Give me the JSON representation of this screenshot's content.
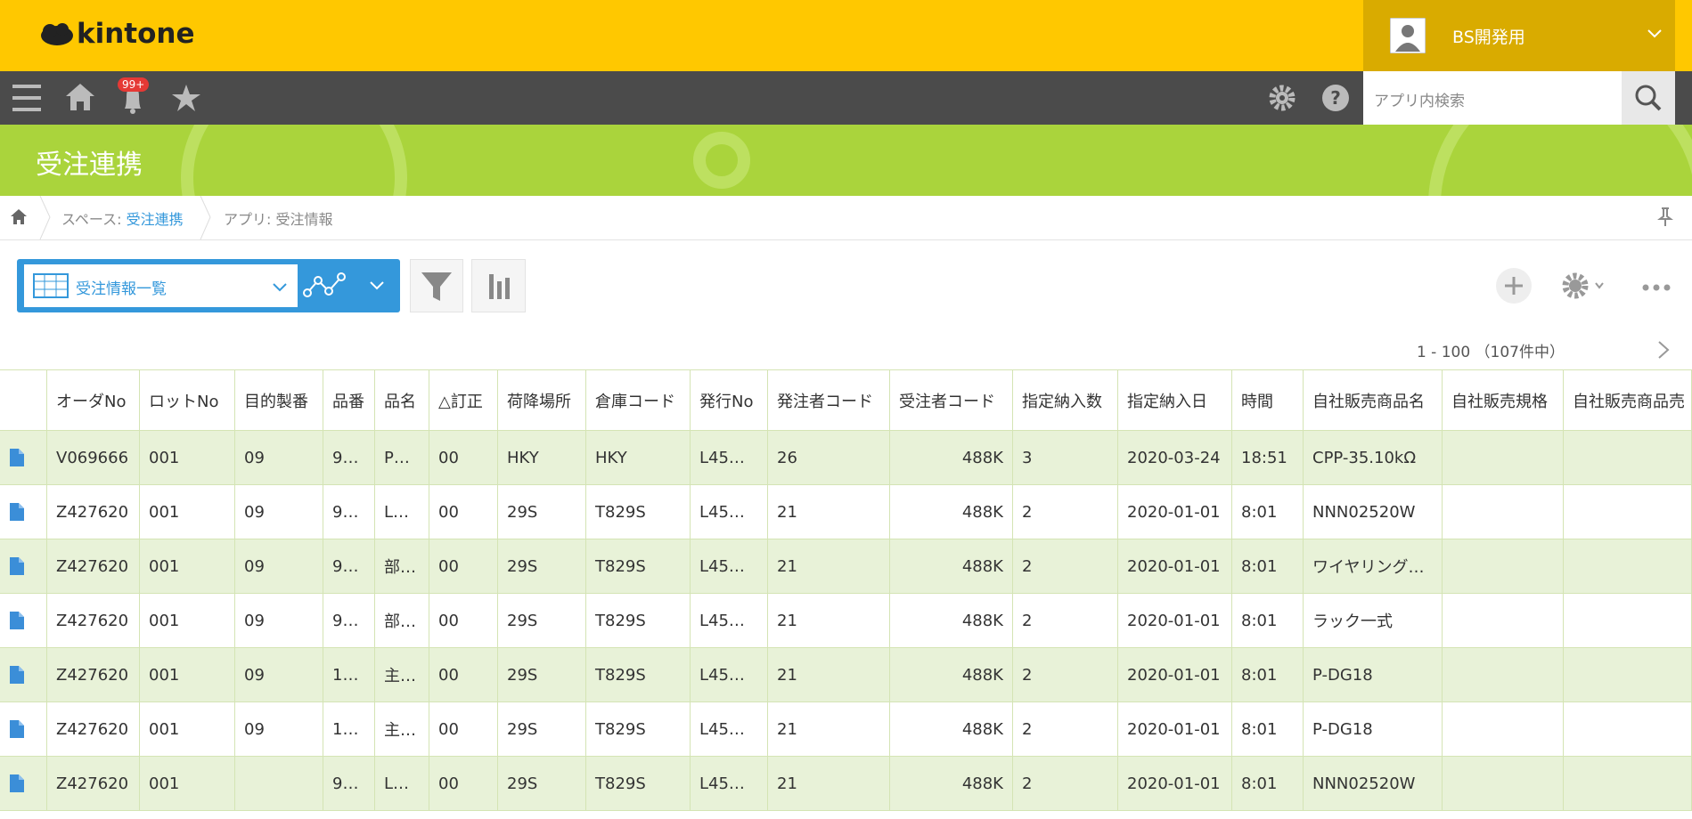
{
  "header": {
    "logo": "kintone",
    "user": "BS開発用",
    "badge": "99+",
    "search_placeholder": "アプリ内検索"
  },
  "banner": {
    "title": "受注連携"
  },
  "breadcrumb": [
    {
      "label": "スペース:",
      "link": "受注連携"
    },
    {
      "label": "アプリ:",
      "text": "受注情報"
    }
  ],
  "toolbar": {
    "view": "受注情報一覧",
    "pagination": "1 - 100 （107件中）"
  },
  "table": {
    "columns": [
      "オーダNo",
      "ロットNo",
      "目的製番",
      "品番",
      "品名",
      "△訂正",
      "荷降場所",
      "倉庫コード",
      "発行No",
      "発注者コード",
      "受注者コード",
      "指定納入数",
      "指定納入日",
      "時間",
      "自社販売商品名",
      "自社販売規格",
      "自社販売商品売"
    ],
    "rows": [
      [
        "V069666",
        "001",
        "09",
        "9…",
        "P…",
        "00",
        "HKY",
        "HKY",
        "L45…",
        "26",
        "488K",
        "3",
        "2020-03-24",
        "18:51",
        "CPP-35.10kΩ",
        null,
        null
      ],
      [
        "Z427620",
        "001",
        "09",
        "9…",
        "L…",
        "00",
        "29S",
        "T829S",
        "L45…",
        "21",
        "488K",
        "2",
        "2020-01-01",
        "8:01",
        "NNN02520W",
        null,
        null
      ],
      [
        "Z427620",
        "001",
        "09",
        "9…",
        "部…",
        "00",
        "29S",
        "T829S",
        "L45…",
        "21",
        "488K",
        "2",
        "2020-01-01",
        "8:01",
        "ワイヤリング…",
        null,
        null
      ],
      [
        "Z427620",
        "001",
        "09",
        "9…",
        "部…",
        "00",
        "29S",
        "T829S",
        "L45…",
        "21",
        "488K",
        "2",
        "2020-01-01",
        "8:01",
        "ラック一式",
        null,
        null
      ],
      [
        "Z427620",
        "001",
        "09",
        "1…",
        "主…",
        "00",
        "29S",
        "T829S",
        "L45…",
        "21",
        "488K",
        "2",
        "2020-01-01",
        "8:01",
        "P-DG18",
        null,
        null
      ],
      [
        "Z427620",
        "001",
        "09",
        "1…",
        "主…",
        "00",
        "29S",
        "T829S",
        "L45…",
        "21",
        "488K",
        "2",
        "2020-01-01",
        "8:01",
        "P-DG18",
        null,
        null
      ],
      [
        "Z427620",
        "001",
        null,
        "9…",
        "L…",
        "00",
        "29S",
        "T829S",
        "L45…",
        "21",
        "488K",
        "2",
        "2020-01-01",
        "8:01",
        "NNN02520W",
        null,
        null
      ]
    ]
  }
}
